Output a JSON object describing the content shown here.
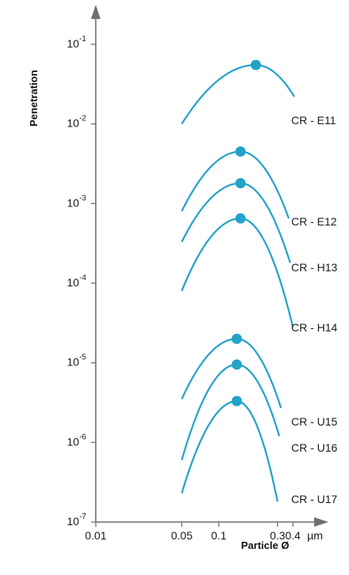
{
  "chart_data": {
    "type": "line",
    "xlabel": "Particle Ø",
    "ylabel": "Penetration",
    "x_unit": "µm",
    "xscale": "log",
    "yscale": "log",
    "xlim": [
      0.01,
      0.5
    ],
    "ylim": [
      1e-07,
      0.1
    ],
    "x_ticks": [
      {
        "value": 0.01,
        "label": "0.01"
      },
      {
        "value": 0.05,
        "label": "0.05"
      },
      {
        "value": 0.1,
        "label": "0.1"
      },
      {
        "value": 0.3,
        "label": "0.3"
      },
      {
        "value": 0.4,
        "label": "0.4"
      }
    ],
    "y_ticks": [
      {
        "value": 0.1,
        "base": "10",
        "exp": "-1"
      },
      {
        "value": 0.01,
        "base": "10",
        "exp": "-2"
      },
      {
        "value": 0.001,
        "base": "10",
        "exp": "-3"
      },
      {
        "value": 0.0001,
        "base": "10",
        "exp": "-4"
      },
      {
        "value": 1e-05,
        "base": "10",
        "exp": "-5"
      },
      {
        "value": 1e-06,
        "base": "10",
        "exp": "-6"
      },
      {
        "value": 1e-07,
        "base": "10",
        "exp": "-7"
      }
    ],
    "series": [
      {
        "name": "CR - E11",
        "x": [
          0.05,
          0.2,
          0.41
        ],
        "y": [
          0.01,
          0.055,
          0.022
        ],
        "peak": {
          "x": 0.2,
          "y": 0.055
        }
      },
      {
        "name": "CR - E12",
        "x": [
          0.05,
          0.15,
          0.37
        ],
        "y": [
          0.0008,
          0.0045,
          0.00065
        ],
        "peak": {
          "x": 0.15,
          "y": 0.0045
        }
      },
      {
        "name": "CR - H13",
        "x": [
          0.05,
          0.15,
          0.38
        ],
        "y": [
          0.00033,
          0.0018,
          0.00018
        ],
        "peak": {
          "x": 0.15,
          "y": 0.0018
        }
      },
      {
        "name": "CR - H14",
        "x": [
          0.05,
          0.15,
          0.4
        ],
        "y": [
          8e-05,
          0.00065,
          2.8e-05
        ],
        "peak": {
          "x": 0.15,
          "y": 0.00065
        }
      },
      {
        "name": "CR - U15",
        "x": [
          0.05,
          0.14,
          0.32
        ],
        "y": [
          3.5e-06,
          2e-05,
          2.7e-06
        ],
        "peak": {
          "x": 0.14,
          "y": 2e-05
        }
      },
      {
        "name": "CR - U16",
        "x": [
          0.05,
          0.14,
          0.31
        ],
        "y": [
          6e-07,
          9.5e-06,
          1.2e-06
        ],
        "peak": {
          "x": 0.14,
          "y": 9.5e-06
        }
      },
      {
        "name": "CR - U17",
        "x": [
          0.05,
          0.14,
          0.3
        ],
        "y": [
          2.3e-07,
          3.3e-06,
          1.8e-07
        ],
        "peak": {
          "x": 0.14,
          "y": 3.3e-06
        }
      }
    ],
    "grid": false,
    "legend": "labels at right of curves",
    "colors": {
      "series": "#21a2c9",
      "axis": "#6f6f6f",
      "text": "#1a1a1a"
    }
  }
}
